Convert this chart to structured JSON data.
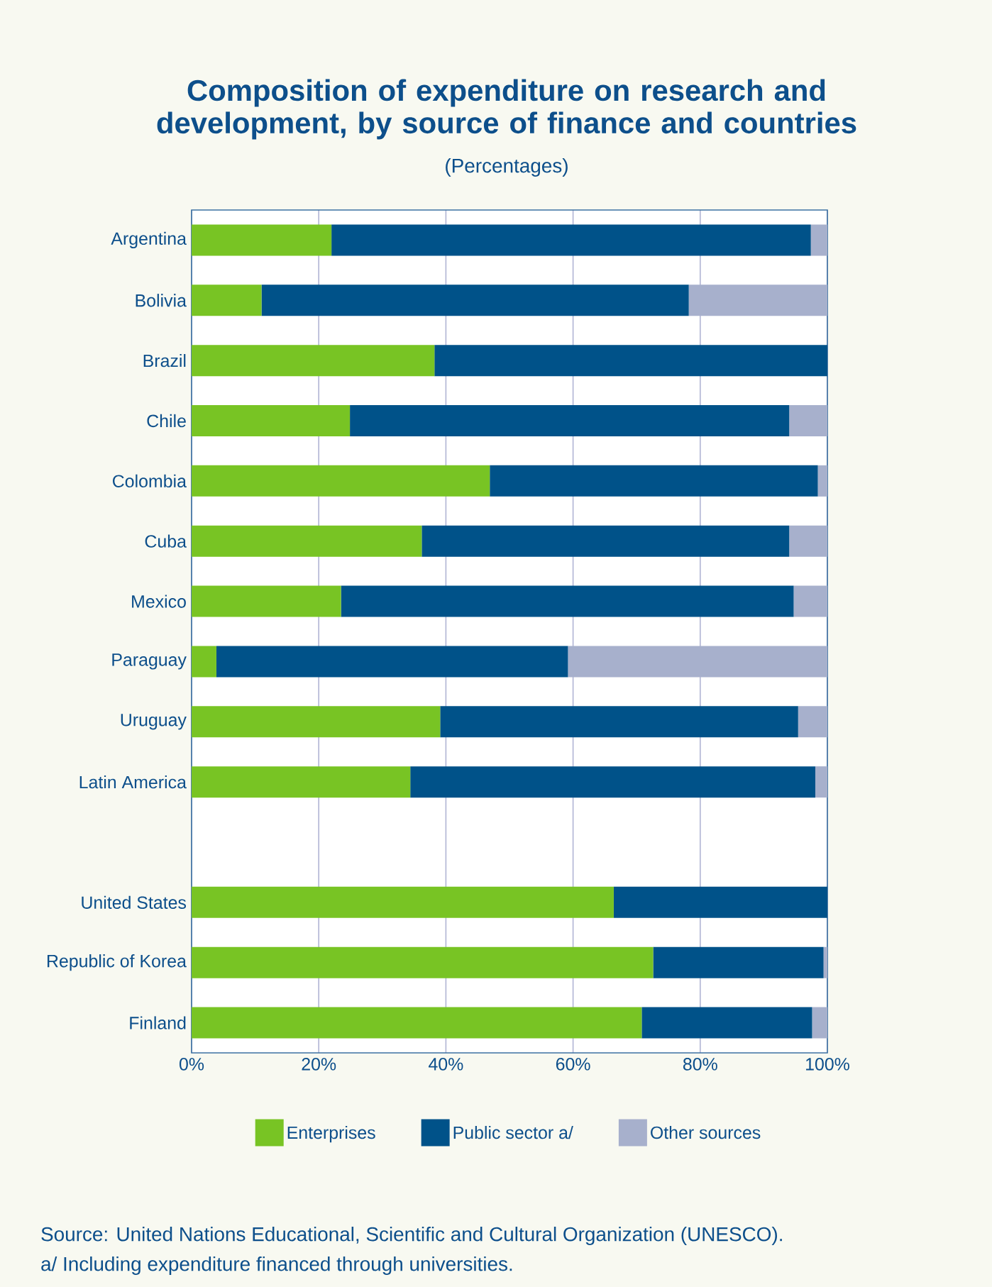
{
  "chart_data": {
    "type": "bar",
    "orientation": "horizontal",
    "stacked": true,
    "title": "Composition of expenditure on research and development, by source of finance and countries",
    "subtitle": "(Percentages)",
    "categories": [
      "Argentina",
      "Bolivia",
      "Brazil",
      "Chile",
      "Colombia",
      "Cuba",
      "Mexico",
      "Paraguay",
      "Uruguay",
      "Latin America",
      null,
      "United States",
      "Republic of Korea",
      "Finland"
    ],
    "series": [
      {
        "name": "Enterprises",
        "color": "#78c424",
        "values": [
          22,
          11,
          38.2,
          24.9,
          46.9,
          36.2,
          23.5,
          3.9,
          39.1,
          34.4,
          null,
          66.4,
          72.6,
          70.8
        ]
      },
      {
        "name": "Public sector a/",
        "color": "#005289",
        "values": [
          75.4,
          67.2,
          61.8,
          69.1,
          51.6,
          57.8,
          71.2,
          55.3,
          56.3,
          63.7,
          null,
          33.6,
          26.8,
          26.8
        ]
      },
      {
        "name": "Other sources",
        "color": "#a7b0cc",
        "values": [
          2.6,
          21.8,
          0,
          6.0,
          1.5,
          6.0,
          5.3,
          40.8,
          4.6,
          1.9,
          null,
          0,
          0.6,
          2.4
        ]
      }
    ],
    "xlim": [
      0,
      100
    ],
    "xticks": [
      {
        "value": 0,
        "label": "0%"
      },
      {
        "value": 20,
        "label": "20%"
      },
      {
        "value": 40,
        "label": "40%"
      },
      {
        "value": 60,
        "label": "60%"
      },
      {
        "value": 80,
        "label": "80%"
      },
      {
        "value": 100,
        "label": "100%"
      }
    ],
    "grid": "x",
    "legend": "bottom",
    "annotations": [
      "Source: United Nations Educational, Scientific and Cultural Organization (UNESCO).",
      "a/ Including expenditure financed through universities."
    ]
  }
}
